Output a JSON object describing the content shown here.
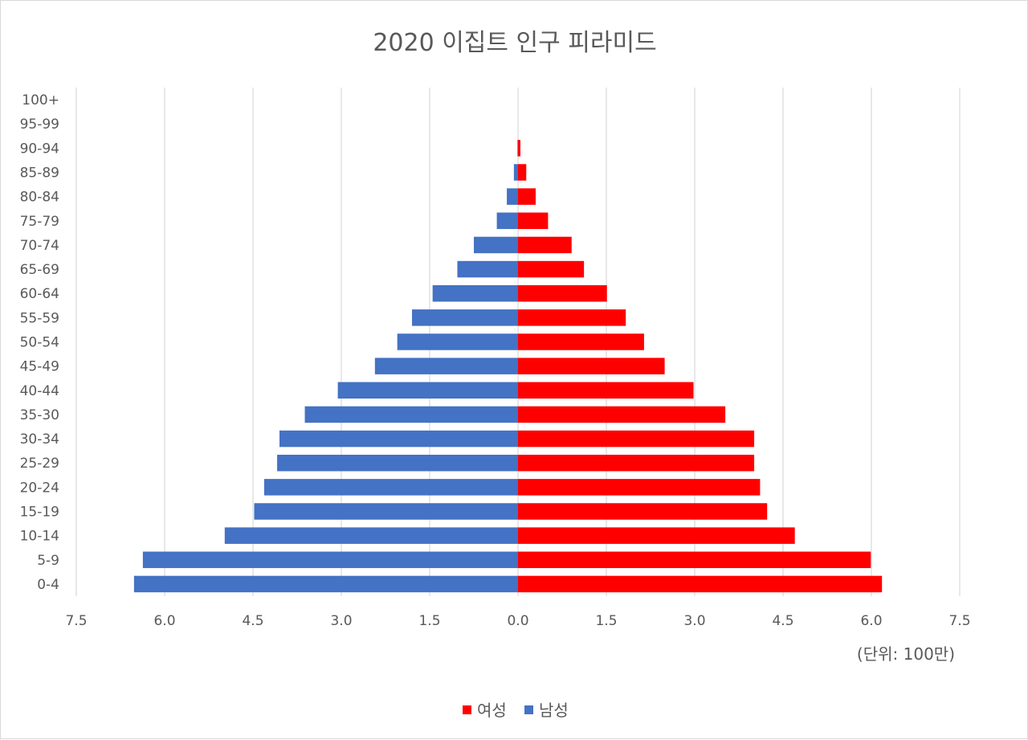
{
  "chart_data": {
    "type": "bar",
    "orientation": "horizontal",
    "layout": "population-pyramid",
    "title": "2020 이집트 인구 피라미드",
    "unit_label": "(단위: 100만)",
    "categories": [
      "0-4",
      "5-9",
      "10-14",
      "15-19",
      "20-24",
      "25-29",
      "30-34",
      "35-30",
      "40-44",
      "45-49",
      "50-54",
      "55-59",
      "60-64",
      "65-69",
      "70-74",
      "75-79",
      "80-84",
      "85-89",
      "90-94",
      "95-99",
      "100+"
    ],
    "series": [
      {
        "name": "여성",
        "color": "#ff0000",
        "side": "right",
        "values": [
          6.18,
          5.99,
          4.7,
          4.23,
          4.11,
          4.01,
          4.01,
          3.52,
          2.98,
          2.49,
          2.14,
          1.83,
          1.51,
          1.12,
          0.91,
          0.51,
          0.3,
          0.14,
          0.04,
          0.0,
          0.0
        ]
      },
      {
        "name": "남성",
        "color": "#4472c4",
        "side": "left",
        "values": [
          6.52,
          6.37,
          4.98,
          4.48,
          4.31,
          4.09,
          4.05,
          3.62,
          3.06,
          2.43,
          2.05,
          1.8,
          1.45,
          1.03,
          0.75,
          0.36,
          0.19,
          0.07,
          0.01,
          0.0,
          0.0
        ]
      }
    ],
    "x_tick_labels": [
      "7.5",
      "6.0",
      "4.5",
      "3.0",
      "1.5",
      "0.0",
      "1.5",
      "3.0",
      "4.5",
      "6.0",
      "7.5"
    ],
    "xlim": [
      -7.5,
      7.5
    ],
    "grid": true,
    "legend_position": "bottom"
  }
}
